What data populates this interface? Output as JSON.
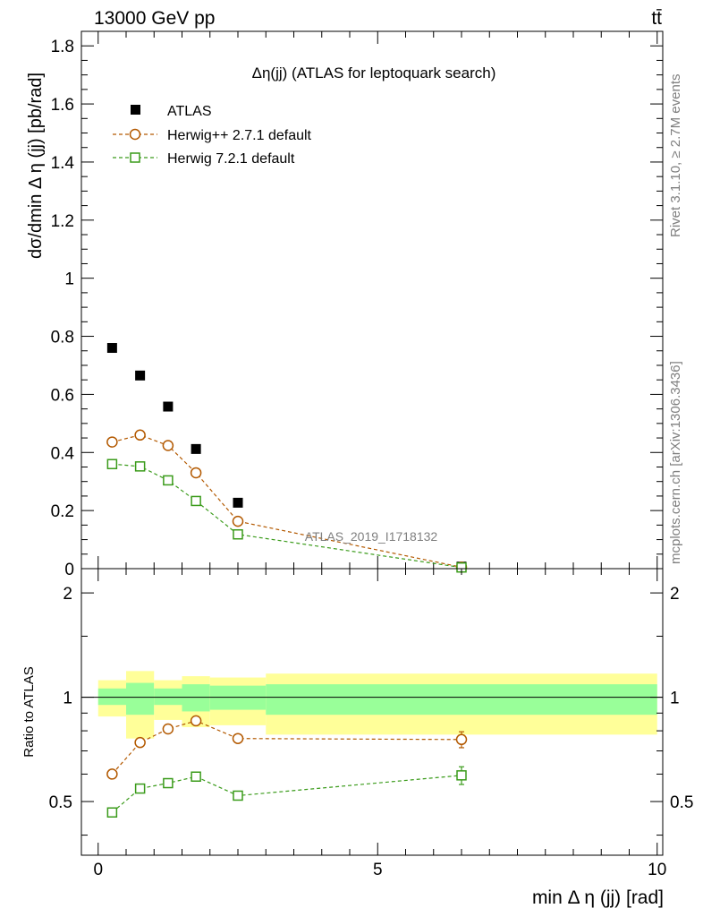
{
  "header": {
    "left": "13000 GeV pp",
    "right": "tt̄"
  },
  "side_labels": {
    "rivet": "Rivet 3.1.10, ≥ 2.7M events",
    "mcplots": "mcplots.cern.ch [arXiv:1306.3436]"
  },
  "watermark": "ATLAS_2019_I1718132",
  "chart_data": [
    {
      "type": "scatter",
      "panel": "main",
      "title": "Δη(jj) (ATLAS for leptoquark search)",
      "xlabel": "min Δ η (jj) [rad]",
      "ylabel": "dσ/dmin Δ η (jj) [pb/rad]",
      "xlim": [
        -0.3,
        10.1
      ],
      "ylim": [
        0,
        1.85
      ],
      "yticks": [
        0,
        0.2,
        0.4,
        0.6,
        0.8,
        1,
        1.2,
        1.4,
        1.6,
        1.8
      ],
      "ytick_labels": [
        "0",
        "0.2",
        "0.4",
        "0.6",
        "0.8",
        "1",
        "1.2",
        "1.4",
        "1.6",
        "1.8"
      ],
      "legend_position": "top-left",
      "series": [
        {
          "name": "ATLAS",
          "style": "filled-square",
          "color": "#000000",
          "x": [
            0.25,
            0.75,
            1.25,
            1.75,
            2.5,
            6.5
          ],
          "y": [
            0.76,
            0.665,
            0.558,
            0.412,
            0.227,
            0.007
          ]
        },
        {
          "name": "Herwig++ 2.7.1 default",
          "style": "open-circle-dashed",
          "color": "#b35900",
          "x": [
            0.25,
            0.75,
            1.25,
            1.75,
            2.5,
            6.5
          ],
          "y": [
            0.436,
            0.46,
            0.424,
            0.33,
            0.163,
            0.005
          ]
        },
        {
          "name": "Herwig 7.2.1 default",
          "style": "open-square-dashed",
          "color": "#3a9b1a",
          "x": [
            0.25,
            0.75,
            1.25,
            1.75,
            2.5,
            6.5
          ],
          "y": [
            0.36,
            0.352,
            0.304,
            0.233,
            0.118,
            0.004
          ]
        }
      ]
    },
    {
      "type": "scatter",
      "panel": "ratio",
      "xlabel": "min Δ η (jj) [rad]",
      "ylabel": "Ratio to ATLAS",
      "xlim": [
        -0.3,
        10.1
      ],
      "ylim": [
        0.35,
        2.35
      ],
      "xticks": [
        0,
        5,
        10
      ],
      "xtick_labels": [
        "0",
        "5",
        "10"
      ],
      "yticks": [
        0.5,
        1,
        2
      ],
      "ytick_labels": [
        "0.5",
        "1",
        "2"
      ],
      "bands": {
        "bin_edges": [
          0,
          0.5,
          1,
          1.5,
          2,
          3,
          10
        ],
        "stat": {
          "color": "#99ff99",
          "low": [
            0.95,
            0.89,
            0.95,
            0.91,
            0.92,
            0.89
          ],
          "high": [
            1.06,
            1.1,
            1.06,
            1.09,
            1.08,
            1.09
          ]
        },
        "total": {
          "color": "#ffff99",
          "low": [
            0.88,
            0.76,
            0.86,
            0.82,
            0.83,
            0.78
          ],
          "high": [
            1.12,
            1.19,
            1.12,
            1.15,
            1.14,
            1.17
          ]
        }
      },
      "series": [
        {
          "name": "Herwig++ 2.7.1 default",
          "color": "#b35900",
          "x": [
            0.25,
            0.75,
            1.25,
            1.75,
            2.5,
            6.5
          ],
          "y": [
            0.6,
            0.74,
            0.81,
            0.855,
            0.76,
            0.755
          ],
          "err": [
            0.008,
            0.01,
            0.01,
            0.012,
            0.015,
            0.04
          ]
        },
        {
          "name": "Herwig 7.2.1 default",
          "color": "#3a9b1a",
          "x": [
            0.25,
            0.75,
            1.25,
            1.75,
            2.5,
            6.5
          ],
          "y": [
            0.465,
            0.545,
            0.565,
            0.59,
            0.52,
            0.595
          ],
          "err": [
            0.008,
            0.01,
            0.01,
            0.014,
            0.015,
            0.035
          ]
        }
      ]
    }
  ]
}
